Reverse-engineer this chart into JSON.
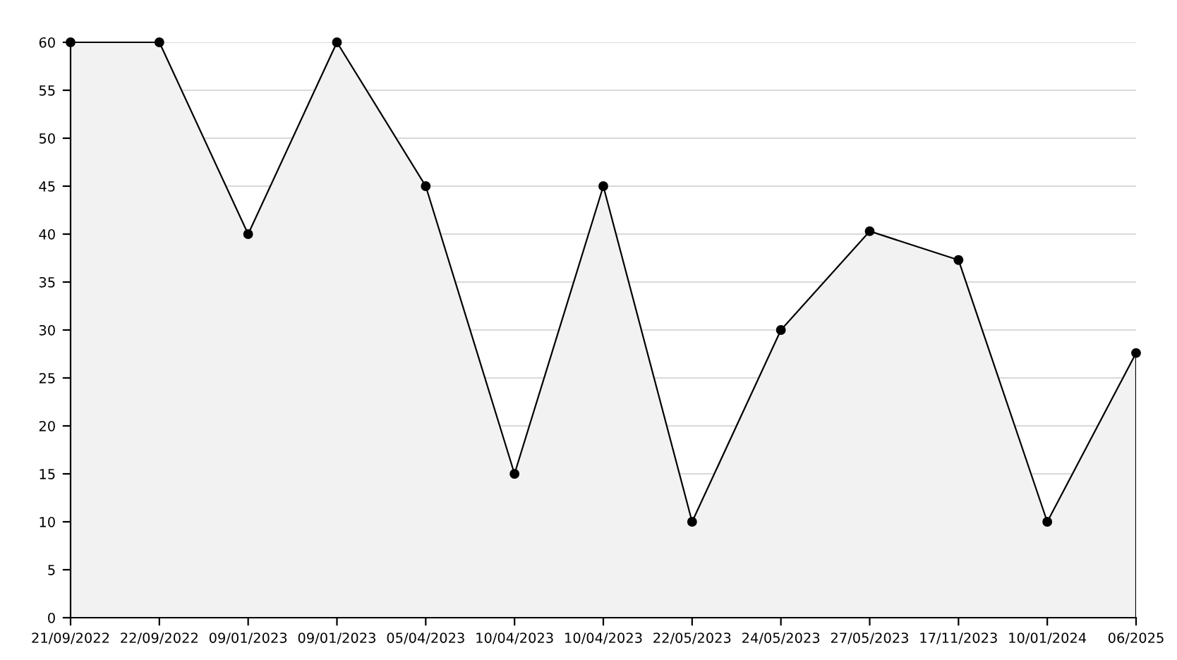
{
  "chart_data": {
    "type": "area",
    "categories": [
      "21/09/2022",
      "22/09/2022",
      "09/01/2023",
      "09/01/2023",
      "05/04/2023",
      "10/04/2023",
      "10/04/2023",
      "22/05/2023",
      "24/05/2023",
      "27/05/2023",
      "17/11/2023",
      "10/01/2024",
      "06/2025"
    ],
    "series": [
      {
        "color": "#000000",
        "values": [
          60,
          60,
          40,
          60,
          45,
          15,
          45,
          10,
          30,
          40.3,
          37.3,
          10,
          27.6
        ]
      }
    ],
    "ylim": [
      0,
      60
    ],
    "yticks": [
      0,
      5,
      10,
      15,
      20,
      25,
      30,
      35,
      40,
      45,
      50,
      55,
      60
    ],
    "grid": "y",
    "marker": "circle",
    "line_style": "solid"
  }
}
